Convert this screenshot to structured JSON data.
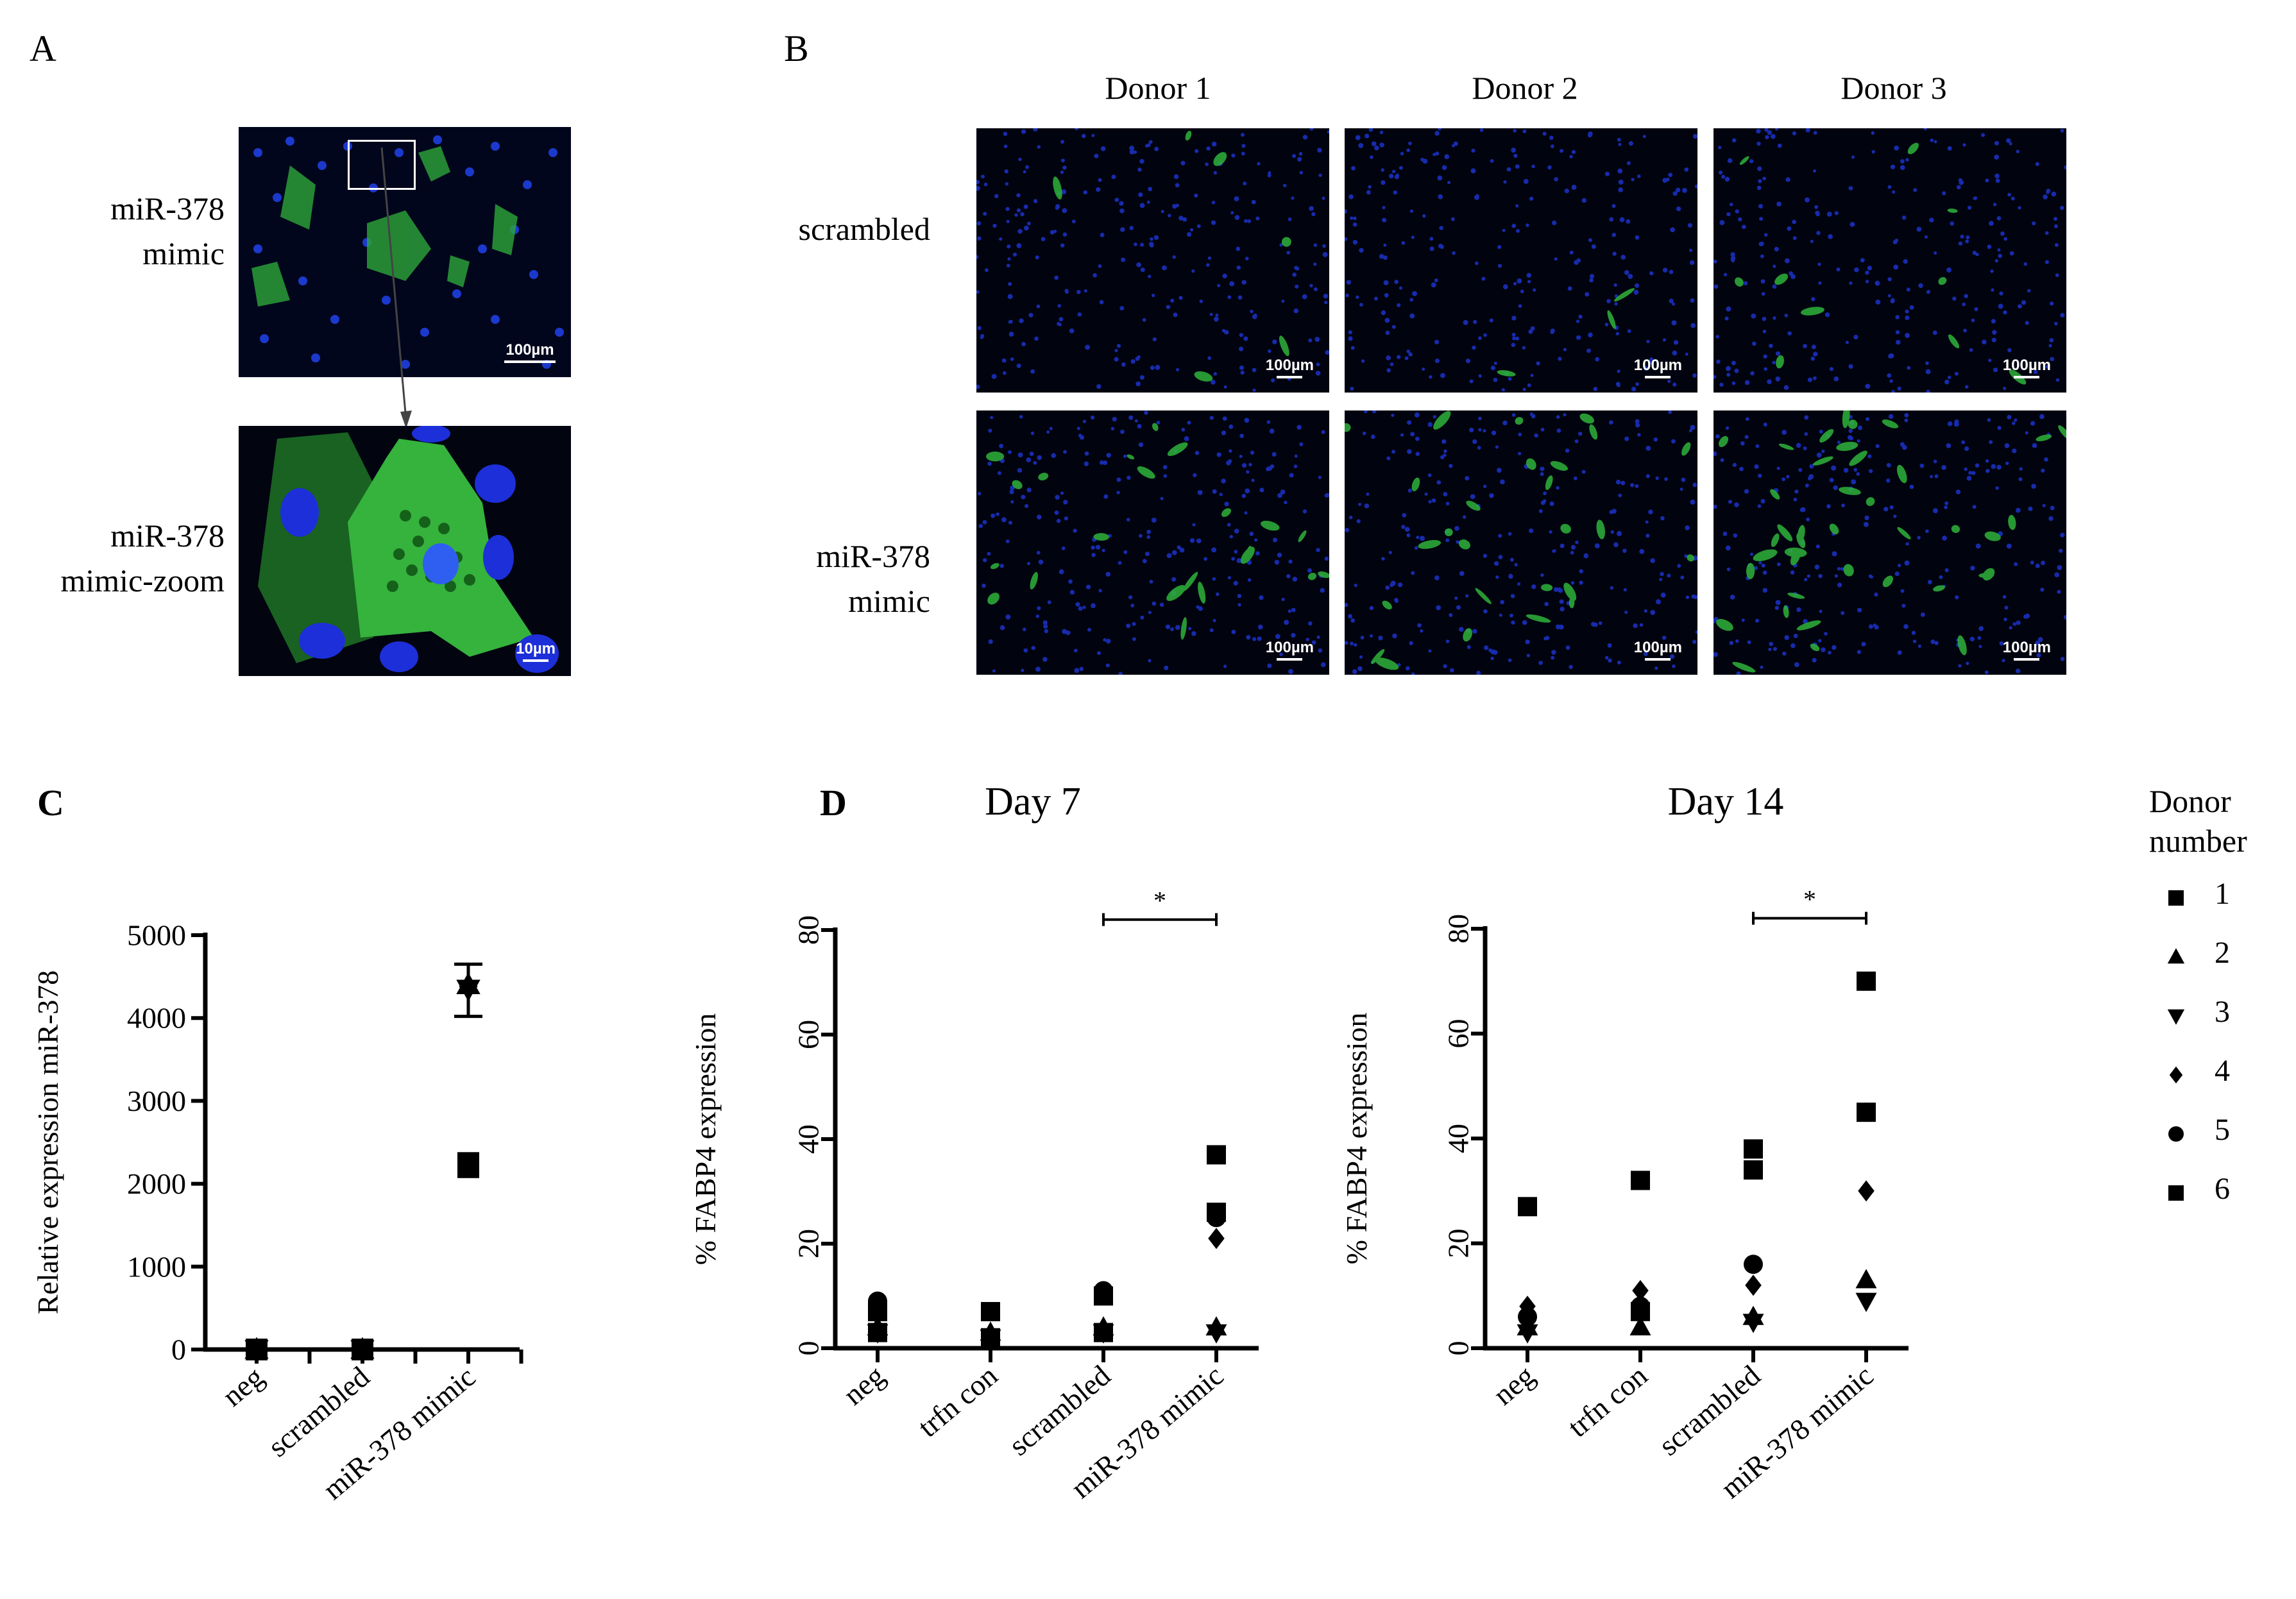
{
  "panels": {
    "A": "A",
    "B": "B",
    "C": "C",
    "D": "D"
  },
  "panelA": {
    "row1_label": [
      "miR-378",
      "mimic"
    ],
    "row2_label": [
      "miR-378",
      "mimic-zoom"
    ],
    "scale1": "100µm",
    "scale2": "10µm"
  },
  "panelB": {
    "columns": [
      "Donor 1",
      "Donor 2",
      "Donor 3"
    ],
    "row1_label": [
      "scrambled"
    ],
    "row2_label": [
      "miR-378",
      "mimic"
    ],
    "scale": "100µm"
  },
  "legend": {
    "title": [
      "Donor",
      "number"
    ],
    "items": [
      {
        "marker": "square",
        "label": "1"
      },
      {
        "marker": "triangle-up",
        "label": "2"
      },
      {
        "marker": "triangle-down",
        "label": "3"
      },
      {
        "marker": "diamond",
        "label": "4"
      },
      {
        "marker": "circle",
        "label": "5"
      },
      {
        "marker": "square",
        "label": "6"
      }
    ]
  },
  "chart_data": [
    {
      "id": "C",
      "type": "scatter",
      "title": "",
      "ylabel": "Relative expression miR-378",
      "ylim": [
        0,
        5000
      ],
      "yticks": [
        0,
        1000,
        2000,
        3000,
        4000,
        5000
      ],
      "categories": [
        "neg",
        "scrambled",
        "miR-378 mimic"
      ],
      "points": [
        {
          "cat": 0,
          "y": 0,
          "marker": "square"
        },
        {
          "cat": 0,
          "y": 0,
          "marker": "triangle-up"
        },
        {
          "cat": 0,
          "y": 0,
          "marker": "triangle-down"
        },
        {
          "cat": 1,
          "y": 0,
          "marker": "square"
        },
        {
          "cat": 1,
          "y": 0,
          "marker": "triangle-up"
        },
        {
          "cat": 1,
          "y": 0,
          "marker": "triangle-down"
        },
        {
          "cat": 2,
          "y": 4400,
          "marker": "triangle-up"
        },
        {
          "cat": 2,
          "y": 4350,
          "marker": "triangle-down"
        },
        {
          "cat": 2,
          "y": 4380,
          "marker": "diamond"
        },
        {
          "cat": 2,
          "y": 2250,
          "marker": "square"
        },
        {
          "cat": 2,
          "y": 2200,
          "marker": "square"
        }
      ],
      "errorbars": [
        {
          "cat": 2,
          "low": 4020,
          "high": 4650
        }
      ]
    },
    {
      "id": "D1",
      "type": "scatter",
      "title": "Day 7",
      "ylabel": "% FABP4 expression",
      "ylim": [
        0,
        80
      ],
      "yticks": [
        0,
        20,
        40,
        60,
        80
      ],
      "categories": [
        "neg",
        "trfn con",
        "scrambled",
        "miR-378 mimic"
      ],
      "points": [
        {
          "cat": 0,
          "y": 9,
          "marker": "circle"
        },
        {
          "cat": 0,
          "y": 8,
          "marker": "diamond"
        },
        {
          "cat": 0,
          "y": 7,
          "marker": "square"
        },
        {
          "cat": 0,
          "y": 4,
          "marker": "triangle-up"
        },
        {
          "cat": 0,
          "y": 3,
          "marker": "square"
        },
        {
          "cat": 0,
          "y": 3,
          "marker": "triangle-down"
        },
        {
          "cat": 1,
          "y": 7,
          "marker": "square"
        },
        {
          "cat": 1,
          "y": 3,
          "marker": "triangle-up"
        },
        {
          "cat": 1,
          "y": 2,
          "marker": "square"
        },
        {
          "cat": 1,
          "y": 2,
          "marker": "triangle-down"
        },
        {
          "cat": 2,
          "y": 11,
          "marker": "circle"
        },
        {
          "cat": 2,
          "y": 10,
          "marker": "square"
        },
        {
          "cat": 2,
          "y": 4,
          "marker": "triangle-up"
        },
        {
          "cat": 2,
          "y": 3,
          "marker": "square"
        },
        {
          "cat": 2,
          "y": 3,
          "marker": "triangle-down"
        },
        {
          "cat": 3,
          "y": 37,
          "marker": "square"
        },
        {
          "cat": 3,
          "y": 26,
          "marker": "square"
        },
        {
          "cat": 3,
          "y": 25,
          "marker": "circle"
        },
        {
          "cat": 3,
          "y": 21,
          "marker": "diamond"
        },
        {
          "cat": 3,
          "y": 4,
          "marker": "triangle-up"
        },
        {
          "cat": 3,
          "y": 3,
          "marker": "triangle-down"
        }
      ],
      "significance": {
        "from": 2,
        "to": 3,
        "y": 82,
        "label": "*"
      }
    },
    {
      "id": "D2",
      "type": "scatter",
      "title": "Day 14",
      "ylabel": "% FABP4 expression",
      "ylim": [
        0,
        80
      ],
      "yticks": [
        0,
        20,
        40,
        60,
        80
      ],
      "categories": [
        "neg",
        "trfn con",
        "scrambled",
        "miR-378 mimic"
      ],
      "points": [
        {
          "cat": 0,
          "y": 27,
          "marker": "square"
        },
        {
          "cat": 0,
          "y": 8,
          "marker": "diamond"
        },
        {
          "cat": 0,
          "y": 6,
          "marker": "circle"
        },
        {
          "cat": 0,
          "y": 4,
          "marker": "triangle-up"
        },
        {
          "cat": 0,
          "y": 3,
          "marker": "triangle-down"
        },
        {
          "cat": 1,
          "y": 32,
          "marker": "square"
        },
        {
          "cat": 1,
          "y": 11,
          "marker": "diamond"
        },
        {
          "cat": 1,
          "y": 8,
          "marker": "circle"
        },
        {
          "cat": 1,
          "y": 7,
          "marker": "square"
        },
        {
          "cat": 1,
          "y": 4,
          "marker": "triangle-up"
        },
        {
          "cat": 2,
          "y": 38,
          "marker": "square"
        },
        {
          "cat": 2,
          "y": 34,
          "marker": "square"
        },
        {
          "cat": 2,
          "y": 16,
          "marker": "circle"
        },
        {
          "cat": 2,
          "y": 12,
          "marker": "diamond"
        },
        {
          "cat": 2,
          "y": 6,
          "marker": "triangle-up"
        },
        {
          "cat": 2,
          "y": 5,
          "marker": "triangle-down"
        },
        {
          "cat": 3,
          "y": 70,
          "marker": "square"
        },
        {
          "cat": 3,
          "y": 45,
          "marker": "square"
        },
        {
          "cat": 3,
          "y": 45,
          "marker": "circle"
        },
        {
          "cat": 3,
          "y": 30,
          "marker": "diamond"
        },
        {
          "cat": 3,
          "y": 13,
          "marker": "triangle-up"
        },
        {
          "cat": 3,
          "y": 9,
          "marker": "triangle-down"
        }
      ],
      "significance": {
        "from": 2,
        "to": 3,
        "y": 82,
        "label": "*"
      }
    }
  ]
}
